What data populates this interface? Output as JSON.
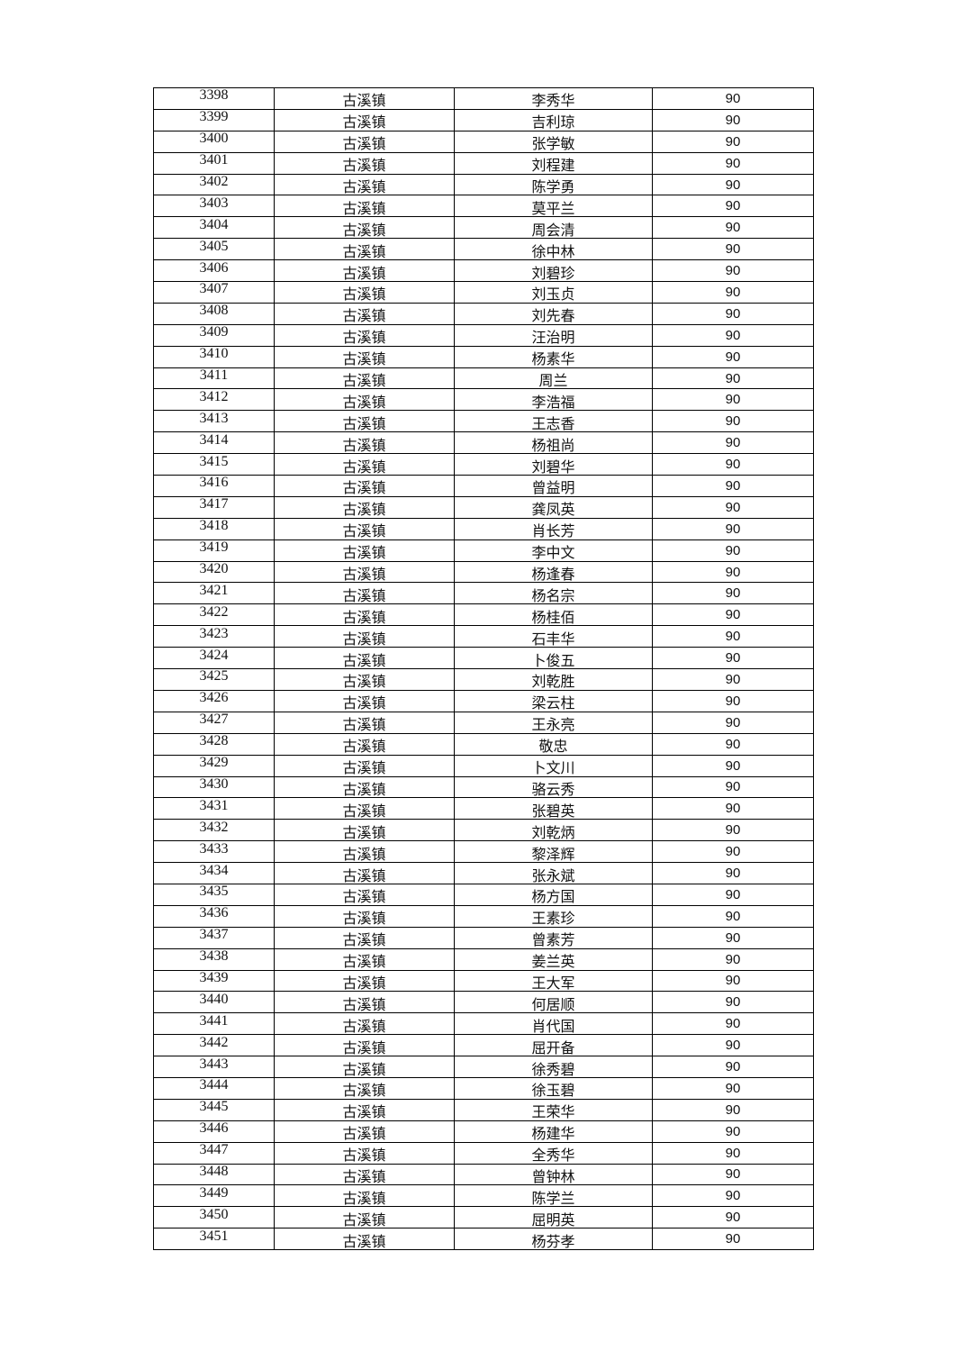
{
  "table": {
    "rows": [
      {
        "no": "3398",
        "town": "古溪镇",
        "name": "李秀华",
        "score": "90"
      },
      {
        "no": "3399",
        "town": "古溪镇",
        "name": "吉利琼",
        "score": "90"
      },
      {
        "no": "3400",
        "town": "古溪镇",
        "name": "张学敏",
        "score": "90"
      },
      {
        "no": "3401",
        "town": "古溪镇",
        "name": "刘程建",
        "score": "90"
      },
      {
        "no": "3402",
        "town": "古溪镇",
        "name": "陈学勇",
        "score": "90"
      },
      {
        "no": "3403",
        "town": "古溪镇",
        "name": "莫平兰",
        "score": "90"
      },
      {
        "no": "3404",
        "town": "古溪镇",
        "name": "周会清",
        "score": "90"
      },
      {
        "no": "3405",
        "town": "古溪镇",
        "name": "徐中林",
        "score": "90"
      },
      {
        "no": "3406",
        "town": "古溪镇",
        "name": "刘碧珍",
        "score": "90"
      },
      {
        "no": "3407",
        "town": "古溪镇",
        "name": "刘玉贞",
        "score": "90"
      },
      {
        "no": "3408",
        "town": "古溪镇",
        "name": "刘先春",
        "score": "90"
      },
      {
        "no": "3409",
        "town": "古溪镇",
        "name": "汪治明",
        "score": "90"
      },
      {
        "no": "3410",
        "town": "古溪镇",
        "name": "杨素华",
        "score": "90"
      },
      {
        "no": "3411",
        "town": "古溪镇",
        "name": "周兰",
        "score": "90"
      },
      {
        "no": "3412",
        "town": "古溪镇",
        "name": "李浩福",
        "score": "90"
      },
      {
        "no": "3413",
        "town": "古溪镇",
        "name": "王志香",
        "score": "90"
      },
      {
        "no": "3414",
        "town": "古溪镇",
        "name": "杨祖尚",
        "score": "90"
      },
      {
        "no": "3415",
        "town": "古溪镇",
        "name": "刘碧华",
        "score": "90"
      },
      {
        "no": "3416",
        "town": "古溪镇",
        "name": "曾益明",
        "score": "90"
      },
      {
        "no": "3417",
        "town": "古溪镇",
        "name": "龚凤英",
        "score": "90"
      },
      {
        "no": "3418",
        "town": "古溪镇",
        "name": "肖长芳",
        "score": "90"
      },
      {
        "no": "3419",
        "town": "古溪镇",
        "name": "李中文",
        "score": "90"
      },
      {
        "no": "3420",
        "town": "古溪镇",
        "name": "杨逢春",
        "score": "90"
      },
      {
        "no": "3421",
        "town": "古溪镇",
        "name": "杨名宗",
        "score": "90"
      },
      {
        "no": "3422",
        "town": "古溪镇",
        "name": "杨桂佰",
        "score": "90"
      },
      {
        "no": "3423",
        "town": "古溪镇",
        "name": "石丰华",
        "score": "90"
      },
      {
        "no": "3424",
        "town": "古溪镇",
        "name": "卜俊五",
        "score": "90"
      },
      {
        "no": "3425",
        "town": "古溪镇",
        "name": "刘乾胜",
        "score": "90"
      },
      {
        "no": "3426",
        "town": "古溪镇",
        "name": "梁云柱",
        "score": "90"
      },
      {
        "no": "3427",
        "town": "古溪镇",
        "name": "王永亮",
        "score": "90"
      },
      {
        "no": "3428",
        "town": "古溪镇",
        "name": "敬忠",
        "score": "90"
      },
      {
        "no": "3429",
        "town": "古溪镇",
        "name": "卜文川",
        "score": "90"
      },
      {
        "no": "3430",
        "town": "古溪镇",
        "name": "骆云秀",
        "score": "90"
      },
      {
        "no": "3431",
        "town": "古溪镇",
        "name": "张碧英",
        "score": "90"
      },
      {
        "no": "3432",
        "town": "古溪镇",
        "name": "刘乾炳",
        "score": "90"
      },
      {
        "no": "3433",
        "town": "古溪镇",
        "name": "黎泽辉",
        "score": "90"
      },
      {
        "no": "3434",
        "town": "古溪镇",
        "name": "张永斌",
        "score": "90"
      },
      {
        "no": "3435",
        "town": "古溪镇",
        "name": "杨方国",
        "score": "90"
      },
      {
        "no": "3436",
        "town": "古溪镇",
        "name": "王素珍",
        "score": "90"
      },
      {
        "no": "3437",
        "town": "古溪镇",
        "name": "曾素芳",
        "score": "90"
      },
      {
        "no": "3438",
        "town": "古溪镇",
        "name": "姜兰英",
        "score": "90"
      },
      {
        "no": "3439",
        "town": "古溪镇",
        "name": "王大军",
        "score": "90"
      },
      {
        "no": "3440",
        "town": "古溪镇",
        "name": "何居顺",
        "score": "90"
      },
      {
        "no": "3441",
        "town": "古溪镇",
        "name": "肖代国",
        "score": "90"
      },
      {
        "no": "3442",
        "town": "古溪镇",
        "name": "屈开备",
        "score": "90"
      },
      {
        "no": "3443",
        "town": "古溪镇",
        "name": "徐秀碧",
        "score": "90"
      },
      {
        "no": "3444",
        "town": "古溪镇",
        "name": "徐玉碧",
        "score": "90"
      },
      {
        "no": "3445",
        "town": "古溪镇",
        "name": "王荣华",
        "score": "90"
      },
      {
        "no": "3446",
        "town": "古溪镇",
        "name": "杨建华",
        "score": "90"
      },
      {
        "no": "3447",
        "town": "古溪镇",
        "name": "全秀华",
        "score": "90"
      },
      {
        "no": "3448",
        "town": "古溪镇",
        "name": "曾钟林",
        "score": "90"
      },
      {
        "no": "3449",
        "town": "古溪镇",
        "name": "陈学兰",
        "score": "90"
      },
      {
        "no": "3450",
        "town": "古溪镇",
        "name": "屈明英",
        "score": "90"
      },
      {
        "no": "3451",
        "town": "古溪镇",
        "name": "杨芬孝",
        "score": "90"
      }
    ]
  }
}
